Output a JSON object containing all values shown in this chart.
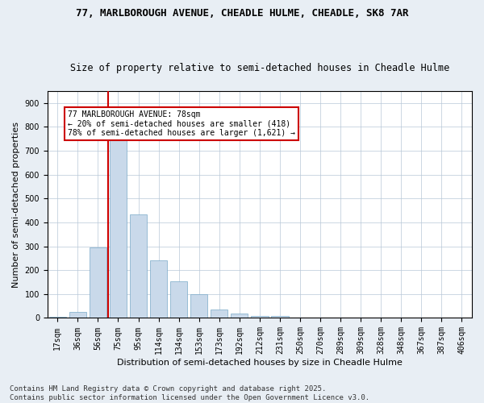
{
  "title": "77, MARLBOROUGH AVENUE, CHEADLE HULME, CHEADLE, SK8 7AR",
  "subtitle": "Size of property relative to semi-detached houses in Cheadle Hulme",
  "xlabel": "Distribution of semi-detached houses by size in Cheadle Hulme",
  "ylabel": "Number of semi-detached properties",
  "bin_labels": [
    "17sqm",
    "36sqm",
    "56sqm",
    "75sqm",
    "95sqm",
    "114sqm",
    "134sqm",
    "153sqm",
    "173sqm",
    "192sqm",
    "212sqm",
    "231sqm",
    "250sqm",
    "270sqm",
    "289sqm",
    "309sqm",
    "328sqm",
    "348sqm",
    "367sqm",
    "387sqm",
    "406sqm"
  ],
  "bar_heights": [
    5,
    25,
    295,
    750,
    435,
    240,
    155,
    100,
    37,
    18,
    10,
    8,
    3,
    1,
    1,
    0,
    0,
    0,
    0,
    0,
    0
  ],
  "bar_color": "#c9d9ea",
  "bar_edge_color": "#7aaac8",
  "vline_x_index": 3,
  "vline_color": "#cc0000",
  "annotation_text": "77 MARLBOROUGH AVENUE: 78sqm\n← 20% of semi-detached houses are smaller (418)\n78% of semi-detached houses are larger (1,621) →",
  "annotation_box_color": "#ffffff",
  "annotation_box_edge": "#cc0000",
  "ylim": [
    0,
    950
  ],
  "yticks": [
    0,
    100,
    200,
    300,
    400,
    500,
    600,
    700,
    800,
    900
  ],
  "footnote": "Contains HM Land Registry data © Crown copyright and database right 2025.\nContains public sector information licensed under the Open Government Licence v3.0.",
  "background_color": "#e8eef4",
  "plot_bg_color": "#ffffff",
  "title_fontsize": 9,
  "subtitle_fontsize": 8.5,
  "tick_fontsize": 7,
  "label_fontsize": 8,
  "footnote_fontsize": 6.5
}
